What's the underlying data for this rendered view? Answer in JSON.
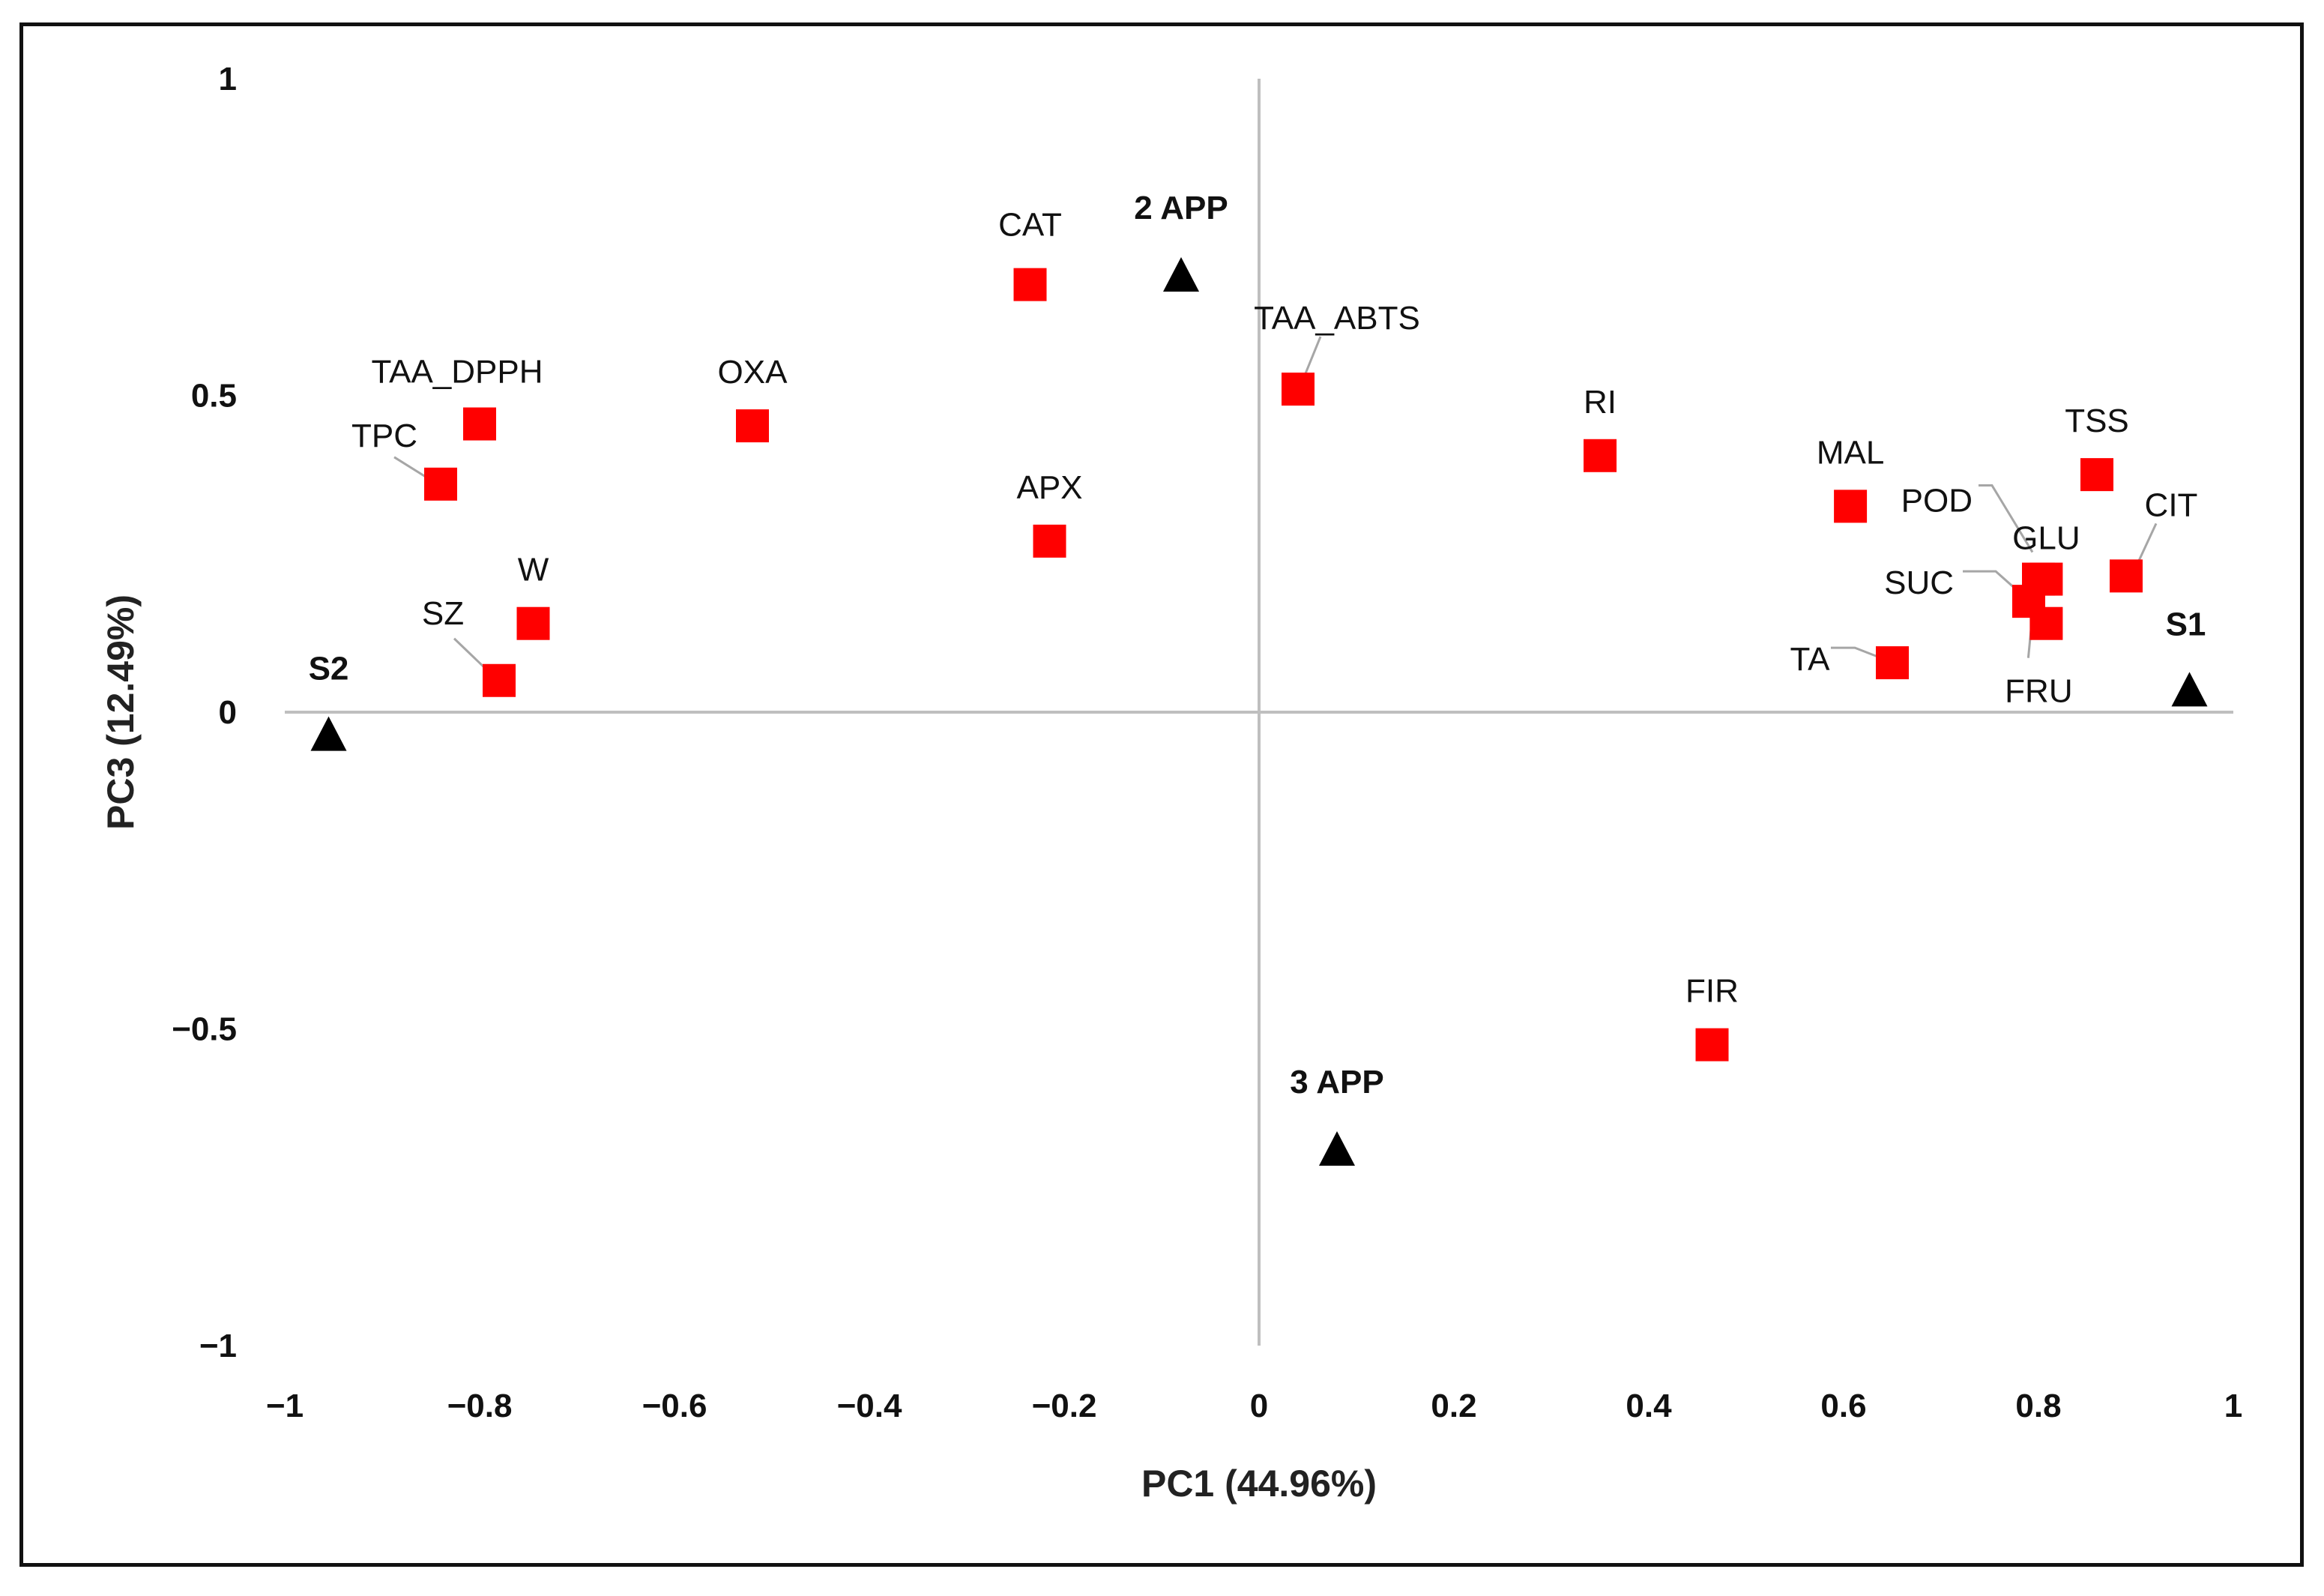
{
  "chart_data": {
    "type": "scatter",
    "xlabel": "PC1 (44.96%)",
    "ylabel": "PC3 (12.49%)",
    "xlim": [
      -1,
      1
    ],
    "ylim": [
      -1,
      1
    ],
    "x_ticks": [
      "−1",
      "−0.8",
      "−0.6",
      "−0.4",
      "−0.2",
      "0",
      "0.2",
      "0.4",
      "0.6",
      "0.8",
      "1"
    ],
    "x_tick_values": [
      -1,
      -0.8,
      -0.6,
      -0.4,
      -0.2,
      0,
      0.2,
      0.4,
      0.6,
      0.8,
      1
    ],
    "y_ticks": [
      "1",
      "0.5",
      "0",
      "−0.5",
      "−1"
    ],
    "y_tick_values": [
      1,
      0.5,
      0,
      -0.5,
      -1
    ],
    "grid": false,
    "colors": {
      "variables": "#ff0000",
      "observations": "#000000",
      "axes": "#bfbfbf"
    },
    "variables": [
      {
        "label": "CAT",
        "x": -0.235,
        "y": 0.675
      },
      {
        "label": "TAA_DPPH",
        "x": -0.8,
        "y": 0.455
      },
      {
        "label": "TPC",
        "x": -0.84,
        "y": 0.36
      },
      {
        "label": "OXA",
        "x": -0.52,
        "y": 0.452
      },
      {
        "label": "APX",
        "x": -0.215,
        "y": 0.27
      },
      {
        "label": "W",
        "x": -0.745,
        "y": 0.14
      },
      {
        "label": "SZ",
        "x": -0.78,
        "y": 0.05
      },
      {
        "label": "TAA_ABTS",
        "x": 0.04,
        "y": 0.51
      },
      {
        "label": "RI",
        "x": 0.35,
        "y": 0.405
      },
      {
        "label": "MAL",
        "x": 0.607,
        "y": 0.325
      },
      {
        "label": "TSS",
        "x": 0.86,
        "y": 0.375
      },
      {
        "label": "POD",
        "x": 0.8,
        "y": 0.21
      },
      {
        "label": "GLU",
        "x": 0.808,
        "y": 0.21
      },
      {
        "label": "CIT",
        "x": 0.89,
        "y": 0.215
      },
      {
        "label": "SUC",
        "x": 0.79,
        "y": 0.175
      },
      {
        "label": "FRU",
        "x": 0.808,
        "y": 0.14
      },
      {
        "label": "TA",
        "x": 0.65,
        "y": 0.078
      },
      {
        "label": "FIR",
        "x": 0.465,
        "y": -0.525
      }
    ],
    "observations": [
      {
        "label": "S2",
        "x": -0.955,
        "y": -0.035
      },
      {
        "label": "S1",
        "x": 0.955,
        "y": 0.035
      },
      {
        "label": "2 APP",
        "x": -0.08,
        "y": 0.69
      },
      {
        "label": "3 APP",
        "x": 0.08,
        "y": -0.69
      }
    ]
  }
}
